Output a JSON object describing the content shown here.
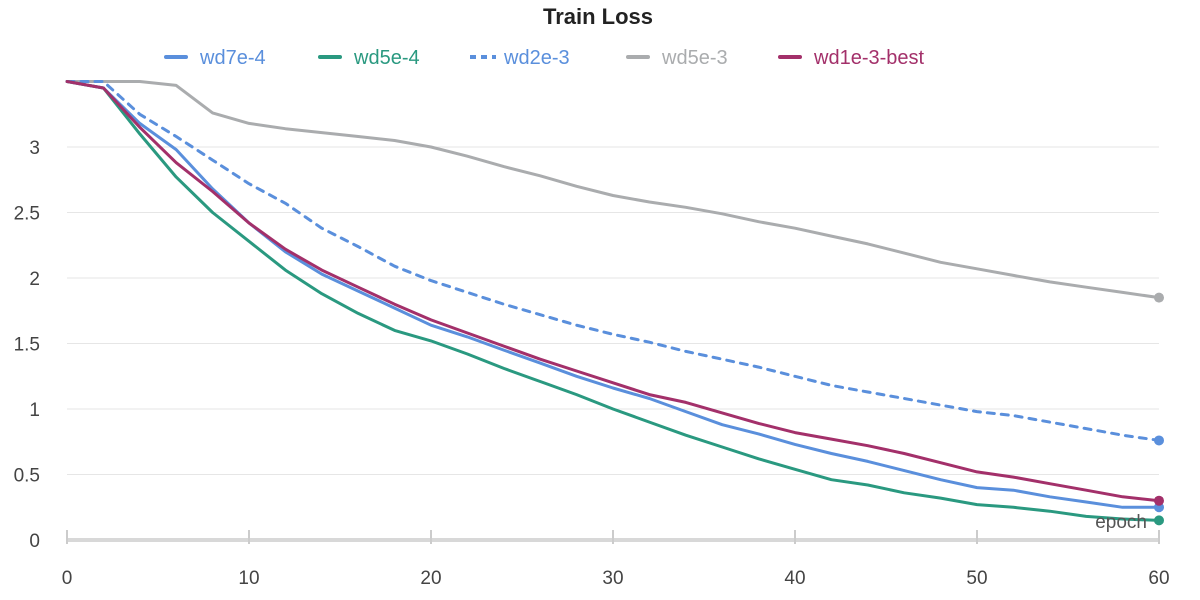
{
  "chart_data": {
    "type": "line",
    "title": "Train Loss",
    "xlabel": "epoch",
    "ylabel": "",
    "xlim": [
      0,
      60
    ],
    "ylim": [
      0,
      3.55
    ],
    "xticks": [
      0,
      10,
      20,
      30,
      40,
      50,
      60
    ],
    "yticks": [
      0,
      0.5,
      1,
      1.5,
      2,
      2.5,
      3
    ],
    "ytick_labels": [
      "0",
      "0.5",
      "1",
      "1.5",
      "2",
      "2.5",
      "3"
    ],
    "grid": "horizontal",
    "legend_position": "top",
    "x": [
      0,
      2,
      4,
      6,
      8,
      10,
      12,
      14,
      16,
      18,
      20,
      22,
      24,
      26,
      28,
      30,
      32,
      34,
      36,
      38,
      40,
      42,
      44,
      46,
      48,
      50,
      52,
      54,
      56,
      58,
      60
    ],
    "series": [
      {
        "name": "wd7e-4",
        "color": "#5a8fdc",
        "dash": "solid",
        "values": [
          3.5,
          3.45,
          3.18,
          2.98,
          2.68,
          2.42,
          2.2,
          2.03,
          1.9,
          1.77,
          1.64,
          1.55,
          1.45,
          1.35,
          1.25,
          1.16,
          1.08,
          0.98,
          0.88,
          0.81,
          0.73,
          0.66,
          0.6,
          0.53,
          0.46,
          0.4,
          0.38,
          0.33,
          0.29,
          0.25,
          0.25
        ]
      },
      {
        "name": "wd5e-4",
        "color": "#2a9980",
        "dash": "solid",
        "values": [
          3.5,
          3.45,
          3.1,
          2.77,
          2.5,
          2.28,
          2.06,
          1.88,
          1.73,
          1.6,
          1.52,
          1.42,
          1.31,
          1.21,
          1.11,
          1.0,
          0.9,
          0.8,
          0.71,
          0.62,
          0.54,
          0.46,
          0.42,
          0.36,
          0.32,
          0.27,
          0.25,
          0.22,
          0.18,
          0.16,
          0.15
        ]
      },
      {
        "name": "wd2e-3",
        "color": "#5a8fdc",
        "dash": "dashed",
        "values": [
          3.5,
          3.5,
          3.25,
          3.08,
          2.9,
          2.72,
          2.57,
          2.38,
          2.24,
          2.09,
          1.98,
          1.89,
          1.8,
          1.72,
          1.64,
          1.57,
          1.51,
          1.44,
          1.38,
          1.32,
          1.25,
          1.18,
          1.13,
          1.08,
          1.03,
          0.98,
          0.95,
          0.9,
          0.85,
          0.8,
          0.76
        ]
      },
      {
        "name": "wd5e-3",
        "color": "#aaacae",
        "dash": "solid",
        "values": [
          3.5,
          3.5,
          3.5,
          3.47,
          3.26,
          3.18,
          3.14,
          3.11,
          3.08,
          3.05,
          3.0,
          2.93,
          2.85,
          2.78,
          2.7,
          2.63,
          2.58,
          2.54,
          2.49,
          2.43,
          2.38,
          2.32,
          2.26,
          2.19,
          2.12,
          2.07,
          2.02,
          1.97,
          1.93,
          1.89,
          1.85
        ]
      },
      {
        "name": "wd1e-3-best",
        "color": "#a3306a",
        "dash": "solid",
        "values": [
          3.5,
          3.45,
          3.15,
          2.88,
          2.66,
          2.42,
          2.22,
          2.06,
          1.93,
          1.8,
          1.68,
          1.58,
          1.48,
          1.38,
          1.29,
          1.2,
          1.11,
          1.05,
          0.97,
          0.89,
          0.82,
          0.77,
          0.72,
          0.66,
          0.59,
          0.52,
          0.48,
          0.43,
          0.38,
          0.33,
          0.3
        ]
      }
    ]
  }
}
